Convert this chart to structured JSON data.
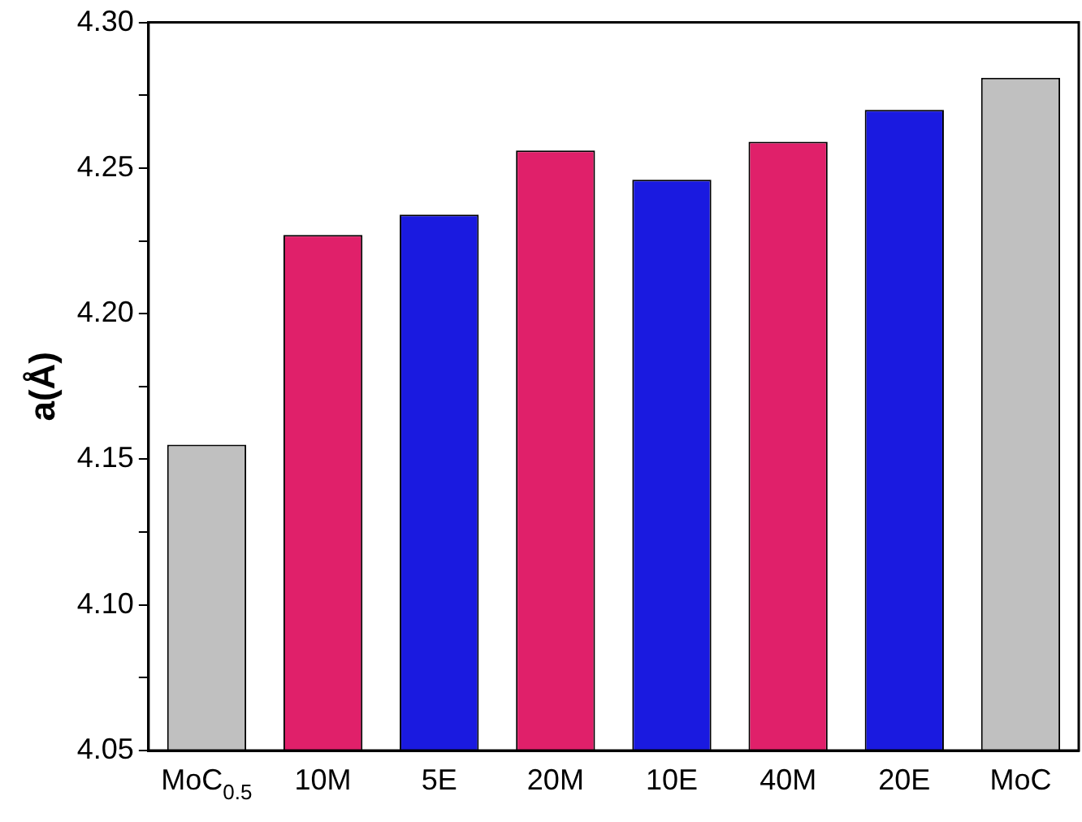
{
  "chart_data": {
    "type": "bar",
    "ylabel": "a(Å)",
    "categories": [
      "MoC$_{0.5}$",
      "10M",
      "5E",
      "20M",
      "10E",
      "40M",
      "20E",
      "MoC"
    ],
    "values": [
      4.155,
      4.227,
      4.234,
      4.256,
      4.246,
      4.259,
      4.27,
      4.281
    ],
    "colors": [
      "#c0c0c0",
      "#e0206a",
      "#1a1ae0",
      "#e0206a",
      "#1a1ae0",
      "#e0206a",
      "#1a1ae0",
      "#c0c0c0"
    ],
    "ylim": [
      4.05,
      4.3
    ],
    "yticks": [
      {
        "value": 4.05,
        "label": "4.05"
      },
      {
        "value": 4.075,
        "label": null
      },
      {
        "value": 4.1,
        "label": "4.10"
      },
      {
        "value": 4.125,
        "label": null
      },
      {
        "value": 4.15,
        "label": "4.15"
      },
      {
        "value": 4.175,
        "label": null
      },
      {
        "value": 4.2,
        "label": "4.20"
      },
      {
        "value": 4.225,
        "label": null
      },
      {
        "value": 4.25,
        "label": "4.25"
      },
      {
        "value": 4.275,
        "label": null
      },
      {
        "value": 4.3,
        "label": "4.30"
      }
    ],
    "grid": false,
    "legend": false
  }
}
